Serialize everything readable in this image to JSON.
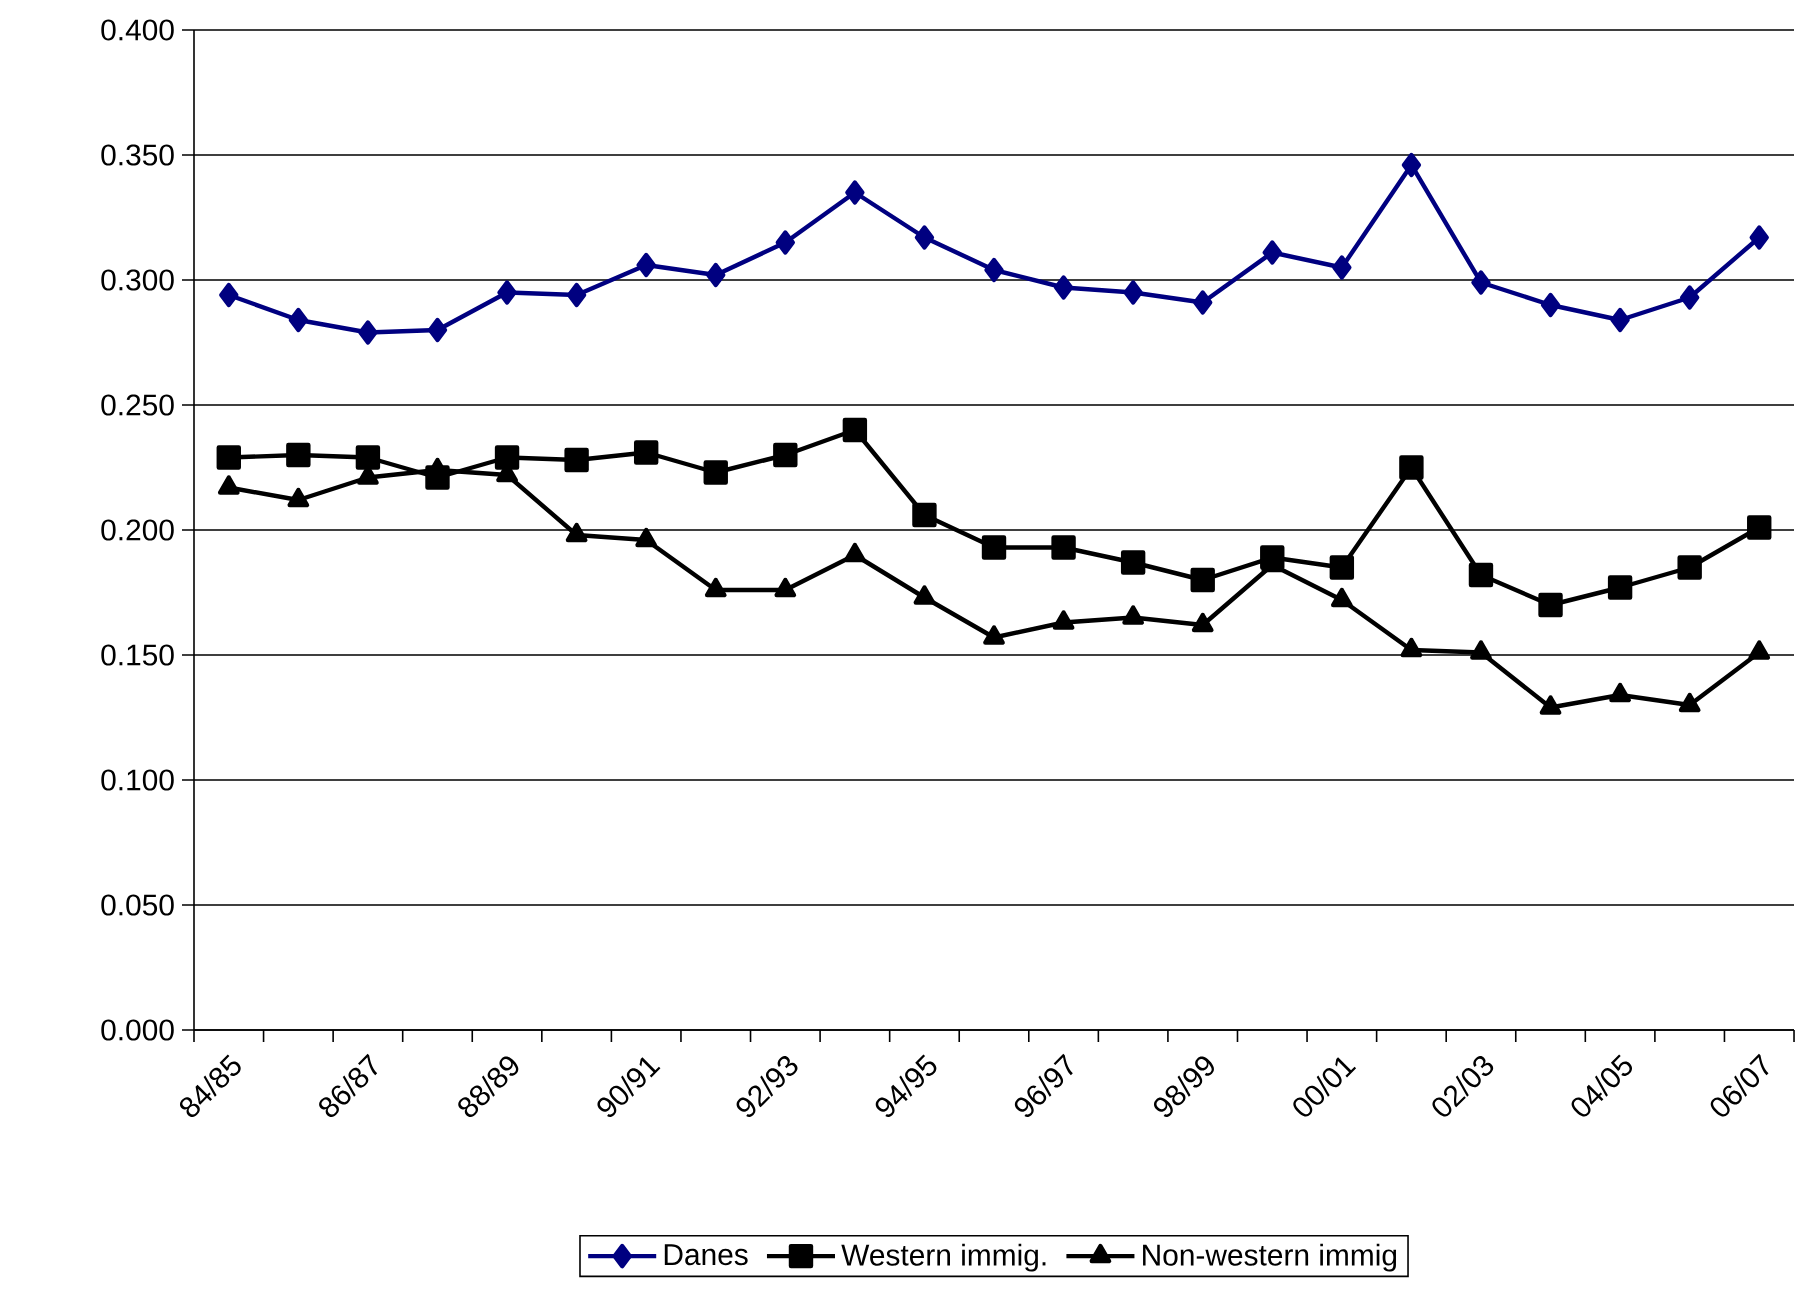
{
  "chart_data": {
    "type": "line",
    "categories": [
      "84/85",
      null,
      "86/87",
      null,
      "88/89",
      null,
      "90/91",
      null,
      "92/93",
      null,
      "94/95",
      null,
      "96/97",
      null,
      "98/99",
      null,
      "00/01",
      null,
      "02/03",
      null,
      "04/05",
      null,
      "06/07"
    ],
    "series": [
      {
        "name": "Danes",
        "color": "#000080",
        "marker": "diamond",
        "values": [
          0.294,
          0.284,
          0.279,
          0.28,
          0.295,
          0.294,
          0.306,
          0.302,
          0.315,
          0.335,
          0.317,
          0.304,
          0.297,
          0.295,
          0.291,
          0.311,
          0.305,
          0.346,
          0.299,
          0.29,
          0.284,
          0.293,
          0.317
        ]
      },
      {
        "name": "Western immig.",
        "color": "#000000",
        "marker": "square",
        "values": [
          0.229,
          0.23,
          0.229,
          0.221,
          0.229,
          0.228,
          0.231,
          0.223,
          0.23,
          0.24,
          0.206,
          0.193,
          0.193,
          0.187,
          0.18,
          0.189,
          0.185,
          0.225,
          0.182,
          0.17,
          0.177,
          0.185,
          0.201
        ]
      },
      {
        "name": "Non-western immig",
        "color": "#000000",
        "marker": "triangle",
        "values": [
          0.217,
          0.212,
          0.221,
          0.224,
          0.222,
          0.198,
          0.196,
          0.176,
          0.176,
          0.19,
          0.173,
          0.157,
          0.163,
          0.165,
          0.162,
          0.186,
          0.172,
          0.152,
          0.151,
          0.129,
          0.134,
          0.13,
          0.151
        ]
      }
    ],
    "ylim": [
      0,
      0.4
    ],
    "yticks": [
      {
        "value": 0,
        "label": "0.000"
      },
      {
        "value": 0.05,
        "label": "0.050"
      },
      {
        "value": 0.1,
        "label": "0.100"
      },
      {
        "value": 0.15,
        "label": "0.150"
      },
      {
        "value": 0.2,
        "label": "0.200"
      },
      {
        "value": 0.25,
        "label": "0.250"
      },
      {
        "value": 0.3,
        "label": "0.300"
      },
      {
        "value": 0.35,
        "label": "0.350"
      },
      {
        "value": 0.4,
        "label": "0.400"
      }
    ],
    "grid": "y",
    "legend": "bottom",
    "line_style": "solid"
  }
}
